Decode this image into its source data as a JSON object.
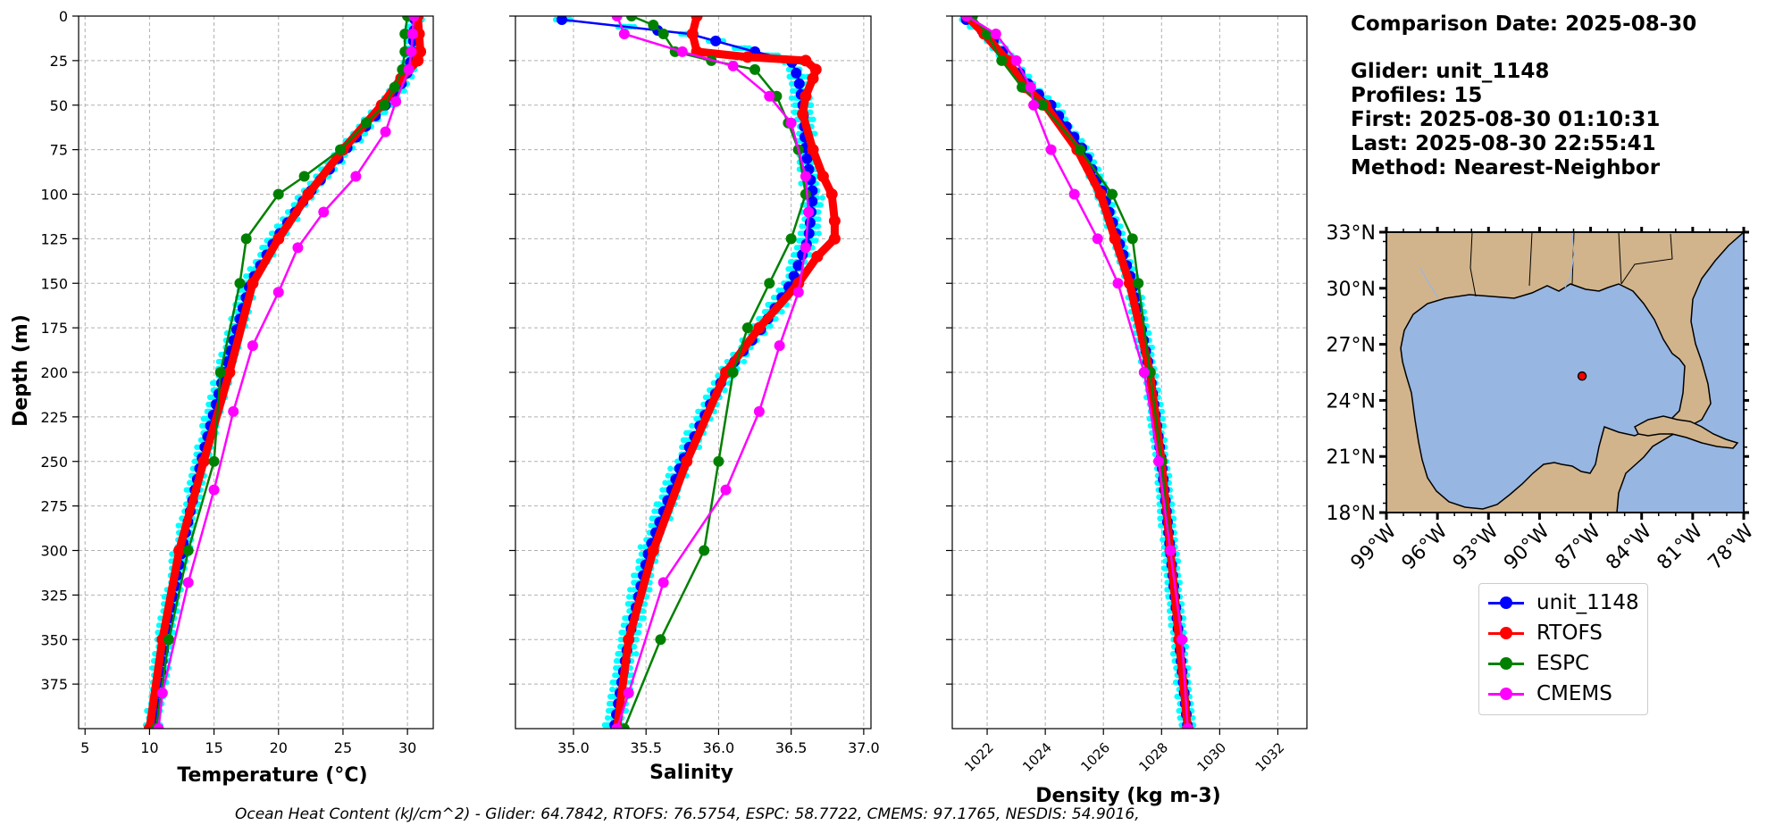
{
  "chart_data": [
    {
      "type": "line",
      "xlabel": "Temperature (°C)",
      "ylabel": "Depth (m)",
      "xlim": [
        4.5,
        32
      ],
      "ylim": [
        400,
        0
      ],
      "xticks": [
        5,
        10,
        15,
        20,
        25,
        30
      ],
      "yticks": [
        0,
        25,
        50,
        75,
        100,
        125,
        150,
        175,
        200,
        225,
        250,
        275,
        300,
        325,
        350,
        375
      ],
      "series": [
        {
          "name": "unit_1148",
          "depth": [
            0,
            10,
            20,
            30,
            40,
            50,
            60,
            75,
            90,
            100,
            125,
            150,
            200,
            250,
            300,
            350,
            400
          ],
          "values": [
            30.6,
            30.5,
            30.4,
            30.1,
            29.4,
            28.3,
            27.0,
            25.2,
            23.5,
            22.3,
            19.8,
            17.8,
            15.8,
            14.0,
            12.5,
            11.2,
            10.3
          ]
        },
        {
          "name": "RTOFS",
          "depth": [
            0,
            10,
            20,
            25,
            35,
            50,
            75,
            100,
            125,
            150,
            200,
            250,
            300,
            350,
            400
          ],
          "values": [
            30.8,
            30.9,
            31.0,
            30.8,
            29.5,
            28.0,
            25.0,
            22.3,
            20.0,
            18.0,
            16.2,
            14.2,
            12.3,
            11.0,
            10.0
          ]
        },
        {
          "name": "ESPC",
          "depth": [
            0,
            10,
            20,
            30,
            40,
            50,
            60,
            75,
            90,
            100,
            125,
            150,
            200,
            250,
            300,
            350,
            400
          ],
          "values": [
            30.0,
            29.8,
            29.8,
            29.6,
            29.0,
            28.2,
            26.8,
            24.8,
            22.0,
            20.0,
            17.5,
            17.0,
            15.5,
            15.0,
            13.0,
            11.5,
            10.5
          ]
        },
        {
          "name": "CMEMS",
          "depth": [
            0,
            10,
            20,
            30,
            48,
            65,
            90,
            110,
            130,
            155,
            185,
            222,
            266,
            318,
            380,
            400
          ],
          "values": [
            30.5,
            30.4,
            30.3,
            30.1,
            29.1,
            28.3,
            26.0,
            23.5,
            21.5,
            20.0,
            18.0,
            16.5,
            15.0,
            13.0,
            11.0,
            10.7
          ]
        }
      ]
    },
    {
      "type": "line",
      "xlabel": "Salinity",
      "ylabel": "",
      "xlim": [
        34.6,
        37.05
      ],
      "ylim": [
        400,
        0
      ],
      "xticks": [
        "35.0",
        "35.5",
        "36.0",
        "36.5",
        "37.0"
      ],
      "series": [
        {
          "name": "unit_1148",
          "depth": [
            2,
            10,
            20,
            25,
            35,
            50,
            75,
            100,
            125,
            150,
            175,
            200,
            250,
            300,
            350,
            400
          ],
          "values": [
            34.92,
            35.8,
            36.25,
            36.5,
            36.55,
            36.58,
            36.6,
            36.65,
            36.62,
            36.5,
            36.3,
            36.05,
            35.75,
            35.52,
            35.38,
            35.28
          ]
        },
        {
          "name": "RTOFS",
          "depth": [
            0,
            10,
            20,
            23,
            25,
            30,
            35,
            45,
            55,
            75,
            90,
            100,
            115,
            125,
            135,
            150,
            175,
            200,
            250,
            300,
            350,
            400
          ],
          "values": [
            35.85,
            35.82,
            35.85,
            36.2,
            36.6,
            36.67,
            36.65,
            36.6,
            36.58,
            36.65,
            36.72,
            36.78,
            36.8,
            36.8,
            36.68,
            36.55,
            36.28,
            36.05,
            35.78,
            35.55,
            35.38,
            35.3
          ]
        },
        {
          "name": "ESPC",
          "depth": [
            0,
            5,
            10,
            20,
            25,
            30,
            45,
            60,
            75,
            100,
            125,
            150,
            175,
            200,
            250,
            300,
            350,
            400
          ],
          "values": [
            35.4,
            35.55,
            35.62,
            35.7,
            35.95,
            36.25,
            36.4,
            36.48,
            36.55,
            36.6,
            36.5,
            36.35,
            36.2,
            36.1,
            36.0,
            35.9,
            35.6,
            35.35
          ]
        },
        {
          "name": "CMEMS",
          "depth": [
            0,
            10,
            20,
            28,
            45,
            60,
            90,
            110,
            130,
            155,
            185,
            222,
            266,
            318,
            380,
            400
          ],
          "values": [
            35.3,
            35.35,
            35.75,
            36.1,
            36.35,
            36.5,
            36.6,
            36.62,
            36.6,
            36.55,
            36.42,
            36.28,
            36.05,
            35.62,
            35.38,
            35.3
          ]
        }
      ]
    },
    {
      "type": "line",
      "xlabel": "Density (kg m-3)",
      "ylabel": "",
      "xlim": [
        1020.8,
        1033
      ],
      "ylim": [
        400,
        0
      ],
      "xticks": [
        1022,
        1024,
        1026,
        1028,
        1030,
        1032
      ],
      "series": [
        {
          "name": "unit_1148",
          "depth": [
            0,
            10,
            25,
            40,
            50,
            75,
            100,
            125,
            150,
            200,
            250,
            300,
            350,
            400
          ],
          "values": [
            1021.1,
            1022.0,
            1022.8,
            1023.5,
            1024.2,
            1025.3,
            1026.0,
            1026.5,
            1027.0,
            1027.6,
            1028.0,
            1028.3,
            1028.6,
            1028.9
          ]
        },
        {
          "name": "RTOFS",
          "depth": [
            0,
            10,
            25,
            40,
            50,
            75,
            100,
            125,
            150,
            200,
            250,
            300,
            350,
            400
          ],
          "values": [
            1021.3,
            1021.9,
            1022.7,
            1023.3,
            1024.0,
            1025.1,
            1025.9,
            1026.4,
            1026.9,
            1027.6,
            1028.0,
            1028.3,
            1028.6,
            1028.9
          ]
        },
        {
          "name": "ESPC",
          "depth": [
            0,
            10,
            25,
            40,
            50,
            75,
            100,
            125,
            150,
            200,
            250,
            300,
            350,
            400
          ],
          "values": [
            1021.5,
            1022.0,
            1022.5,
            1023.2,
            1023.9,
            1025.2,
            1026.3,
            1027.0,
            1027.2,
            1027.6,
            1028.0,
            1028.3,
            1028.7,
            1028.9
          ]
        },
        {
          "name": "CMEMS",
          "depth": [
            0,
            10,
            25,
            40,
            50,
            75,
            100,
            125,
            150,
            200,
            250,
            300,
            350,
            400
          ],
          "values": [
            1021.3,
            1022.3,
            1023.0,
            1023.5,
            1023.6,
            1024.2,
            1025.0,
            1025.8,
            1026.5,
            1027.4,
            1027.9,
            1028.3,
            1028.7,
            1028.9
          ]
        }
      ]
    }
  ],
  "info": {
    "comparison_date": "Comparison Date: 2025-08-30",
    "glider": "Glider: unit_1148",
    "profiles": "Profiles: 15",
    "first": "First: 2025-08-30 01:10:31",
    "last": "Last: 2025-08-30 22:55:41",
    "method": "Method: Nearest-Neighbor"
  },
  "map": {
    "lat_ticks": [
      "33°N",
      "30°N",
      "27°N",
      "24°N",
      "21°N",
      "18°N"
    ],
    "lon_ticks": [
      "99°W",
      "96°W",
      "93°W",
      "90°W",
      "87°W",
      "84°W",
      "81°W",
      "78°W"
    ],
    "lat_range": [
      18,
      33
    ],
    "lon_range": [
      -99,
      -78
    ],
    "glider_position": {
      "lat": 25.3,
      "lon": -87.5
    },
    "land_color": "#d2b48c",
    "ocean_color": "#97b6e1"
  },
  "legend": {
    "items": [
      {
        "label": "unit_1148",
        "color": "#0000ff"
      },
      {
        "label": "RTOFS",
        "color": "#ff0000"
      },
      {
        "label": "ESPC",
        "color": "#008000"
      },
      {
        "label": "CMEMS",
        "color": "#ff00ff"
      }
    ]
  },
  "ohc_text": "Ocean Heat Content (kJ/cm^2) - Glider: 64.7842,  RTOFS: 76.5754,  ESPC: 58.7722,  CMEMS: 97.1765,  NESDIS: 54.9016,",
  "colors": {
    "glider_profiles": "#00ffff",
    "grid": "#b0b0b0"
  }
}
